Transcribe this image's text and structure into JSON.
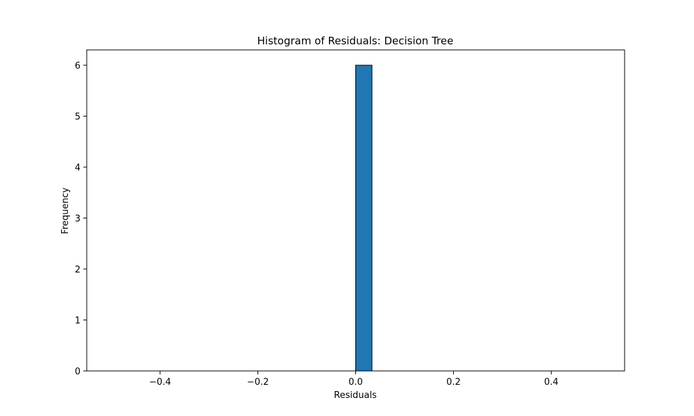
{
  "chart_data": {
    "type": "bar",
    "title": "Histogram of Residuals: Decision Tree",
    "xlabel": "Residuals",
    "ylabel": "Frequency",
    "xlim": [
      -0.55,
      0.55
    ],
    "ylim": [
      0,
      6.3
    ],
    "xticks": [
      -0.4,
      -0.2,
      0.0,
      0.2,
      0.4
    ],
    "xtick_labels": [
      "−0.4",
      "−0.2",
      "0.0",
      "0.2",
      "0.4"
    ],
    "yticks": [
      0,
      1,
      2,
      3,
      4,
      5,
      6
    ],
    "ytick_labels": [
      "0",
      "1",
      "2",
      "3",
      "4",
      "5",
      "6"
    ],
    "bins": {
      "start": -0.5,
      "end": 0.5,
      "count": 30
    },
    "counts": [
      0,
      0,
      0,
      0,
      0,
      0,
      0,
      0,
      0,
      0,
      0,
      0,
      0,
      0,
      0,
      6,
      0,
      0,
      0,
      0,
      0,
      0,
      0,
      0,
      0,
      0,
      0,
      0,
      0,
      0
    ],
    "grid": false,
    "colors": {
      "bar_fill": "#1f77b4",
      "bar_edge": "#000000"
    }
  }
}
